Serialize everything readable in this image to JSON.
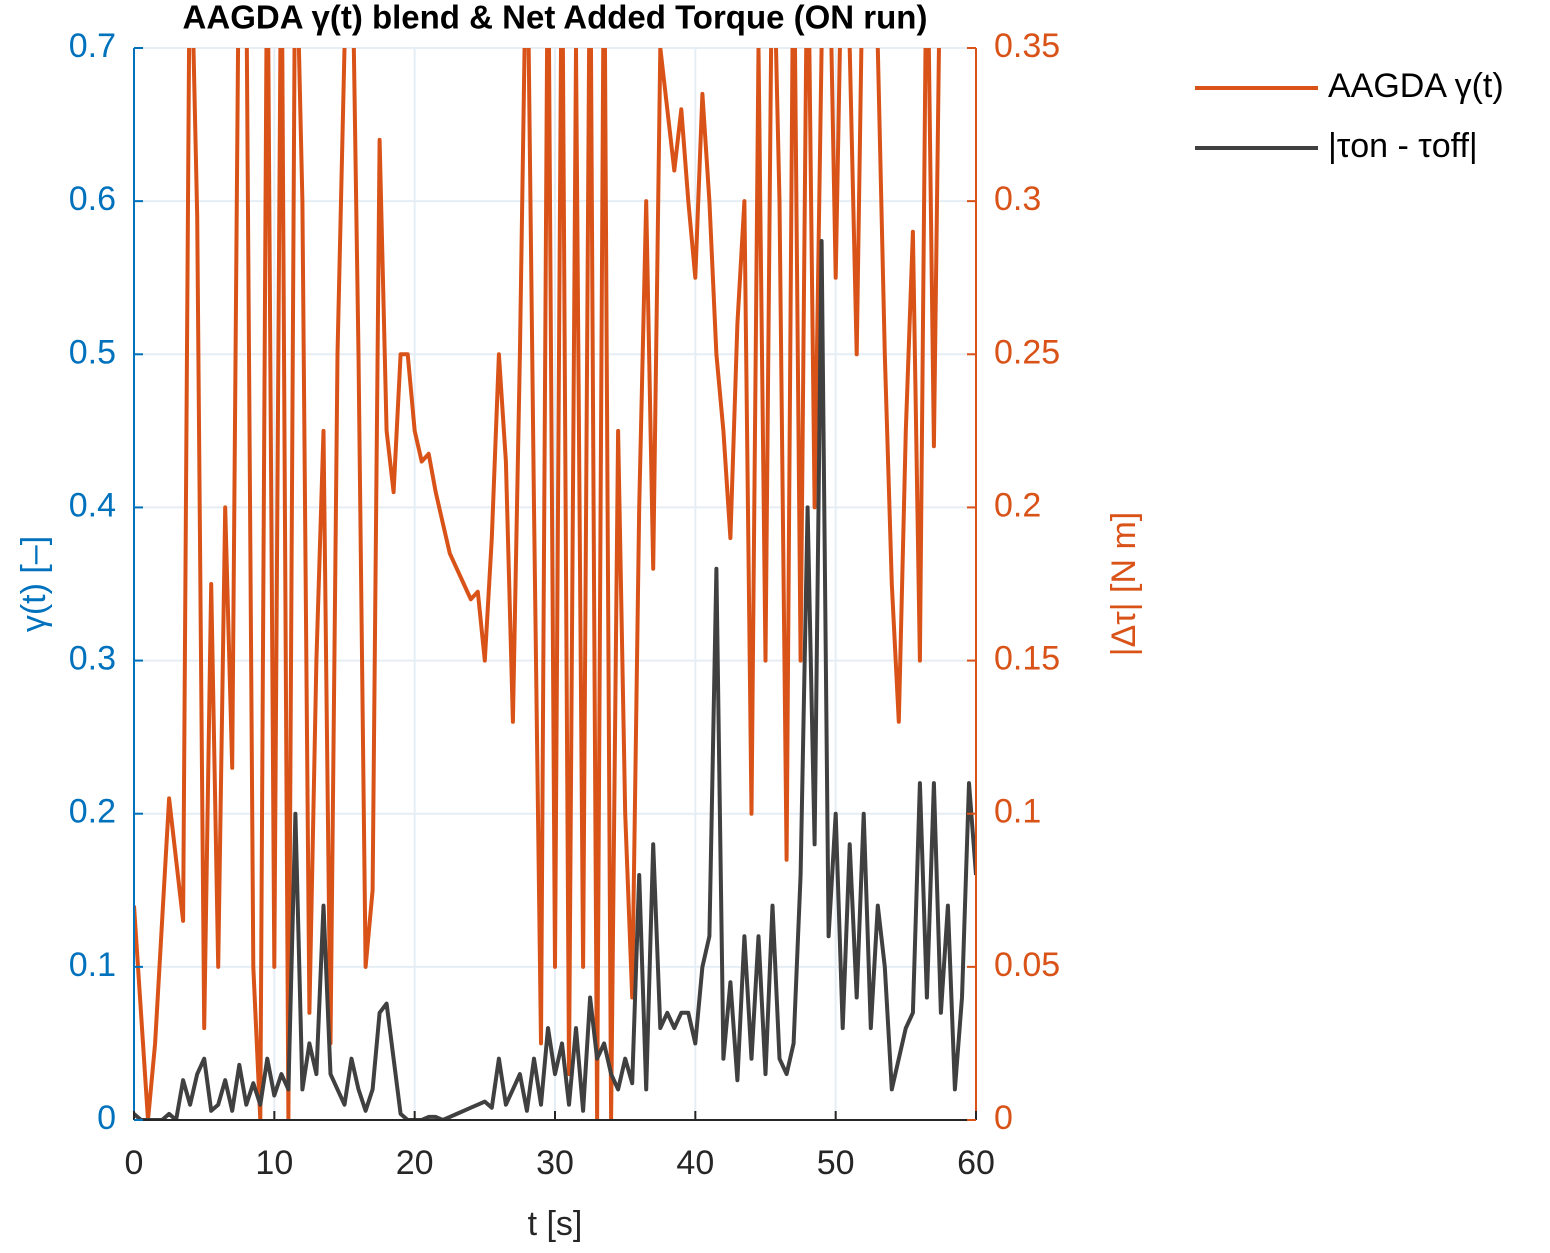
{
  "chart_data": {
    "type": "line",
    "title": "AAGDA γ(t) blend & Net Added Torque (ON run)",
    "xlabel": "t [s]",
    "ylabel": "γ(t) [–]",
    "y2label": "|Δτ| [N m]",
    "xlim": [
      0,
      60
    ],
    "xticks": [
      0,
      10,
      20,
      30,
      40,
      50,
      60
    ],
    "ylim": [
      0,
      0.7
    ],
    "yticks": [
      0,
      0.1,
      0.2,
      0.3,
      0.4,
      0.5,
      0.6,
      0.7
    ],
    "y2lim": [
      0,
      0.35
    ],
    "y2ticks": [
      0,
      0.05,
      0.1,
      0.15,
      0.2,
      0.25,
      0.3,
      0.35
    ],
    "grid": true,
    "legend": "outside-right",
    "x": [
      0,
      0.5,
      1,
      1.5,
      2,
      2.5,
      3,
      3.5,
      4,
      4.5,
      5,
      5.5,
      6,
      6.5,
      7,
      7.5,
      8,
      8.5,
      9,
      9.5,
      10,
      10.5,
      11,
      11.5,
      12,
      12.5,
      13,
      13.5,
      14,
      14.5,
      15,
      15.5,
      16,
      16.5,
      17,
      17.5,
      18,
      18.5,
      19,
      19.5,
      20,
      20.5,
      21,
      21.5,
      22,
      22.5,
      23,
      23.5,
      24,
      24.5,
      25,
      25.5,
      26,
      26.5,
      27,
      27.5,
      28,
      28.5,
      29,
      29.5,
      30,
      30.5,
      31,
      31.5,
      32,
      32.5,
      33,
      33.5,
      34,
      34.5,
      35,
      35.5,
      36,
      36.5,
      37,
      37.5,
      38,
      38.5,
      39,
      39.5,
      40,
      40.5,
      41,
      41.5,
      42,
      42.5,
      43,
      43.5,
      44,
      44.5,
      45,
      45.5,
      46,
      46.5,
      47,
      47.5,
      48,
      48.5,
      49,
      49.5,
      50,
      50.5,
      51,
      51.5,
      52,
      52.5,
      53,
      53.5,
      54,
      54.5,
      55,
      55.5,
      56,
      56.5,
      57,
      57.5,
      58,
      58.5,
      59,
      59.5,
      60
    ],
    "series": [
      {
        "name": "AAGDA γ(t)",
        "color": "#D95319",
        "axis": "y",
        "values": [
          0.14,
          0.07,
          0,
          0.05,
          0.13,
          0.21,
          0.17,
          0.13,
          0.8,
          0.59,
          0.06,
          0.35,
          0.1,
          0.4,
          0.23,
          0.8,
          0.75,
          0.1,
          0,
          0.8,
          0.1,
          0.8,
          0,
          0.8,
          0.6,
          0.07,
          0.3,
          0.45,
          0.05,
          0.5,
          0.7,
          0.8,
          0.5,
          0.1,
          0.15,
          0.64,
          0.45,
          0.41,
          0.5,
          0.5,
          0.45,
          0.43,
          0.435,
          0.41,
          0.39,
          0.37,
          0.36,
          0.35,
          0.34,
          0.345,
          0.3,
          0.38,
          0.5,
          0.43,
          0.26,
          0.5,
          0.8,
          0.4,
          0.05,
          0.8,
          0.1,
          0.8,
          0.03,
          0.7,
          0.1,
          0.8,
          0,
          0.8,
          0,
          0.45,
          0.2,
          0.08,
          0.4,
          0.6,
          0.36,
          0.7,
          0.66,
          0.62,
          0.66,
          0.6,
          0.55,
          0.67,
          0.6,
          0.5,
          0.45,
          0.38,
          0.52,
          0.6,
          0.2,
          0.7,
          0.3,
          0.8,
          0.6,
          0.17,
          0.8,
          0.3,
          0.8,
          0.4,
          0.7,
          0.8,
          0.55,
          0.8,
          0.7,
          0.5,
          0.8,
          0.75,
          0.7,
          0.5,
          0.35,
          0.26,
          0.45,
          0.58,
          0.3,
          0.8,
          0.44,
          0.8,
          null,
          null,
          null,
          null,
          null
        ]
      },
      {
        "name": "|τon - τoff|",
        "color": "#404040",
        "axis": "y2",
        "values": [
          0.002,
          0,
          0,
          0,
          0,
          0.002,
          0,
          0.013,
          0.005,
          0.015,
          0.02,
          0.003,
          0.005,
          0.013,
          0.003,
          0.018,
          0.005,
          0.012,
          0.005,
          0.02,
          0.008,
          0.015,
          0.01,
          0.1,
          0.01,
          0.025,
          0.015,
          0.07,
          0.015,
          0.01,
          0.005,
          0.02,
          0.01,
          0.003,
          0.01,
          0.035,
          0.038,
          0.02,
          0.002,
          0,
          0,
          0,
          0.001,
          0.001,
          0,
          0.001,
          0.002,
          0.003,
          0.004,
          0.005,
          0.006,
          0.004,
          0.02,
          0.005,
          0.01,
          0.015,
          0.003,
          0.02,
          0.005,
          0.03,
          0.015,
          0.025,
          0.005,
          0.03,
          0.003,
          0.04,
          0.02,
          0.025,
          0.015,
          0.01,
          0.02,
          0.012,
          0.08,
          0.01,
          0.09,
          0.03,
          0.035,
          0.03,
          0.035,
          0.035,
          0.025,
          0.05,
          0.06,
          0.18,
          0.02,
          0.045,
          0.013,
          0.06,
          0.02,
          0.06,
          0.015,
          0.07,
          0.02,
          0.015,
          0.025,
          0.08,
          0.2,
          0.09,
          0.287,
          0.06,
          0.1,
          0.03,
          0.09,
          0.04,
          0.1,
          0.03,
          0.07,
          0.05,
          0.01,
          0.02,
          0.03,
          0.035,
          0.11,
          0.04,
          0.11,
          0.035,
          0.07,
          0.01,
          0.04,
          0.11,
          0.08
        ]
      }
    ]
  }
}
